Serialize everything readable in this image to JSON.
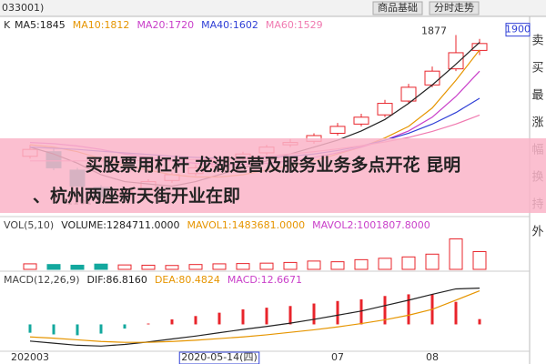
{
  "header": {
    "code": "033001)",
    "k": "K",
    "buttons": [
      "商品基础",
      "分时走势"
    ]
  },
  "sidebar": [
    "卖",
    "买",
    "最",
    "涨",
    "幅",
    "换",
    "持",
    "外"
  ],
  "banner": [
    "买股票用杠杆 龙湖运营及服务业务多点开花 昆明",
    "、杭州两座新天街开业在即"
  ],
  "chart_data": {
    "type": "candlestick",
    "categories": [
      "202003",
      null,
      null,
      null,
      null,
      null,
      null,
      null,
      "2020-05-14(四)",
      null,
      null,
      null,
      null,
      "07",
      null,
      null,
      null,
      "08",
      null,
      null
    ],
    "open": [
      1350,
      1370,
      1290,
      1215,
      1180,
      1205,
      1245,
      1275,
      1305,
      1340,
      1365,
      1400,
      1415,
      1450,
      1490,
      1530,
      1590,
      1660,
      1730,
      1810
    ],
    "high": [
      1400,
      1385,
      1300,
      1225,
      1215,
      1250,
      1280,
      1315,
      1345,
      1370,
      1400,
      1425,
      1450,
      1495,
      1535,
      1595,
      1665,
      1740,
      1877,
      1860
    ],
    "low": [
      1340,
      1290,
      1210,
      1161,
      1170,
      1195,
      1235,
      1265,
      1295,
      1330,
      1355,
      1390,
      1405,
      1440,
      1480,
      1520,
      1580,
      1650,
      1720,
      1790
    ],
    "close": [
      1380,
      1300,
      1220,
      1175,
      1200,
      1240,
      1270,
      1300,
      1330,
      1360,
      1390,
      1410,
      1440,
      1480,
      1520,
      1580,
      1650,
      1720,
      1800,
      1840
    ],
    "up_color": "#e8242b",
    "down_color": "#13a89e",
    "ylim": [
      1100,
      1950
    ],
    "yticks": [
      1900
    ],
    "series": [
      {
        "name": "MA5:1845",
        "color": "#222222",
        "values": [
          1390,
          1360,
          1320,
          1270,
          1240,
          1230,
          1220,
          1240,
          1270,
          1300,
          1330,
          1360,
          1390,
          1420,
          1460,
          1510,
          1580,
          1660,
          1750,
          1845
        ]
      },
      {
        "name": "MA10:1812",
        "color": "#e69500",
        "values": [
          1400,
          1390,
          1370,
          1340,
          1310,
          1290,
          1270,
          1260,
          1260,
          1270,
          1290,
          1310,
          1330,
          1360,
          1390,
          1430,
          1480,
          1560,
          1680,
          1812
        ]
      },
      {
        "name": "MA20:1720",
        "color": "#c93fc9",
        "values": [
          1410,
          1405,
          1395,
          1380,
          1360,
          1345,
          1330,
          1320,
          1315,
          1315,
          1320,
          1330,
          1345,
          1365,
          1390,
          1420,
          1460,
          1520,
          1610,
          1720
        ]
      },
      {
        "name": "MA40:1602",
        "color": "#2f3fd6",
        "values": [
          1390,
          1385,
          1380,
          1372,
          1365,
          1358,
          1350,
          1345,
          1342,
          1342,
          1345,
          1350,
          1360,
          1375,
          1395,
          1420,
          1450,
          1490,
          1540,
          1602
        ]
      },
      {
        "name": "MA60:1529",
        "color": "#f07ab0",
        "values": [
          1330,
          1330,
          1330,
          1330,
          1330,
          1332,
          1334,
          1336,
          1340,
          1345,
          1350,
          1360,
          1370,
          1382,
          1396,
          1412,
          1432,
          1458,
          1490,
          1529
        ]
      }
    ],
    "volume": {
      "labels": [
        "VOL(5,10)",
        "VOLUME:1284711.0000",
        "MAVOL1:1483681.0000",
        "MAVOL2:1001807.8000"
      ],
      "label_colors": [
        "#444444",
        "#222222",
        "#e69500",
        "#c93fc9"
      ],
      "ylim": [
        0,
        2500000
      ],
      "values": [
        400000,
        350000,
        300000,
        380000,
        320000,
        300000,
        280000,
        350000,
        400000,
        420000,
        450000,
        500000,
        600000,
        550000,
        700000,
        800000,
        900000,
        1100000,
        2200000,
        1284711
      ]
    },
    "macd": {
      "labels": [
        "MACD(12,26,9)",
        "DIF:86.8160",
        "DEA:80.4824",
        "MACD:12.6671"
      ],
      "label_colors": [
        "#444444",
        "#222222",
        "#e69500",
        "#c93fc9"
      ],
      "ylim": [
        -60,
        110
      ],
      "dif": [
        -40,
        -45,
        -50,
        -52,
        -48,
        -42,
        -35,
        -28,
        -20,
        -12,
        -5,
        3,
        12,
        22,
        32,
        45,
        58,
        72,
        85,
        86.816
      ],
      "dea": [
        -30,
        -33,
        -37,
        -41,
        -43,
        -43,
        -41,
        -38,
        -34,
        -30,
        -25,
        -19,
        -13,
        -6,
        2,
        11,
        22,
        36,
        58,
        80.4824
      ],
      "hist": [
        -20,
        -24,
        -26,
        -22,
        -10,
        2,
        12,
        20,
        28,
        36,
        40,
        44,
        50,
        56,
        60,
        68,
        72,
        72,
        54,
        12.6671
      ]
    }
  }
}
